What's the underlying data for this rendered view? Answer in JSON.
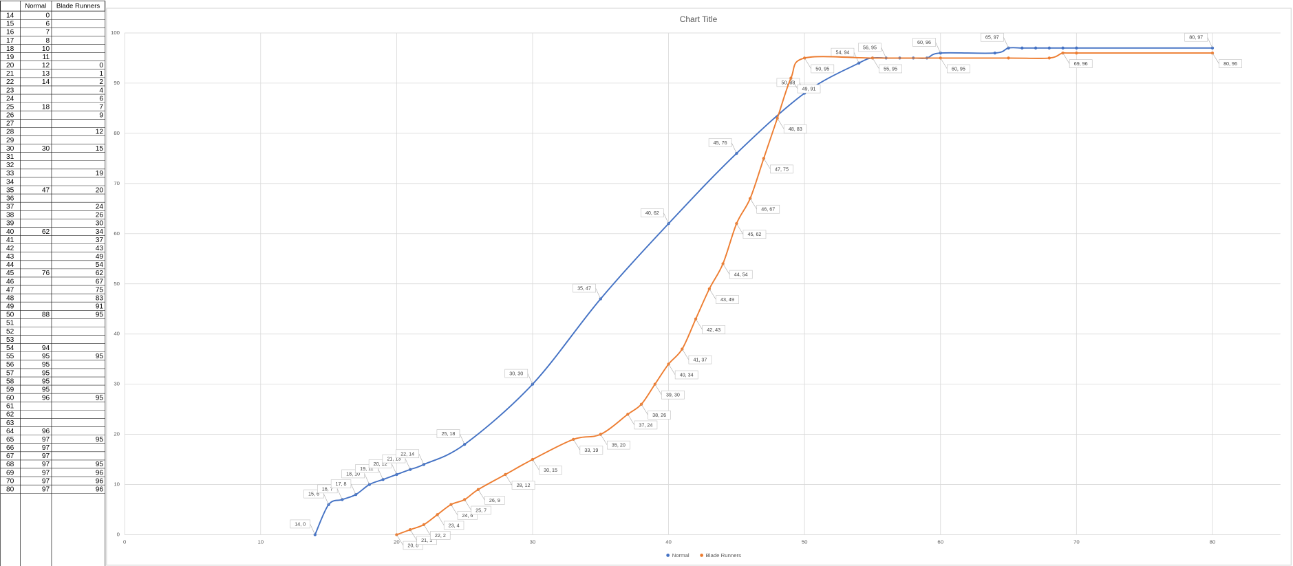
{
  "table": {
    "header": [
      "Normal",
      "Blade Runners"
    ],
    "rows": [
      [
        14,
        0,
        null
      ],
      [
        15,
        6,
        null
      ],
      [
        16,
        7,
        null
      ],
      [
        17,
        8,
        null
      ],
      [
        18,
        10,
        null
      ],
      [
        19,
        11,
        null
      ],
      [
        20,
        12,
        0
      ],
      [
        21,
        13,
        1
      ],
      [
        22,
        14,
        2
      ],
      [
        23,
        null,
        4
      ],
      [
        24,
        null,
        6
      ],
      [
        25,
        18,
        7
      ],
      [
        26,
        null,
        9
      ],
      [
        27,
        null,
        null
      ],
      [
        28,
        null,
        12
      ],
      [
        29,
        null,
        null
      ],
      [
        30,
        30,
        15
      ],
      [
        31,
        null,
        null
      ],
      [
        32,
        null,
        null
      ],
      [
        33,
        null,
        19
      ],
      [
        34,
        null,
        null
      ],
      [
        35,
        47,
        20
      ],
      [
        36,
        null,
        null
      ],
      [
        37,
        null,
        24
      ],
      [
        38,
        null,
        26
      ],
      [
        39,
        null,
        30
      ],
      [
        40,
        62,
        34
      ],
      [
        41,
        null,
        37
      ],
      [
        42,
        null,
        43
      ],
      [
        43,
        null,
        49
      ],
      [
        44,
        null,
        54
      ],
      [
        45,
        76,
        62
      ],
      [
        46,
        null,
        67
      ],
      [
        47,
        null,
        75
      ],
      [
        48,
        null,
        83
      ],
      [
        49,
        null,
        91
      ],
      [
        50,
        88,
        95
      ],
      [
        51,
        null,
        null
      ],
      [
        52,
        null,
        null
      ],
      [
        53,
        null,
        null
      ],
      [
        54,
        94,
        null
      ],
      [
        55,
        95,
        95
      ],
      [
        56,
        95,
        null
      ],
      [
        57,
        95,
        null
      ],
      [
        58,
        95,
        null
      ],
      [
        59,
        95,
        null
      ],
      [
        60,
        96,
        95
      ],
      [
        61,
        null,
        null
      ],
      [
        62,
        null,
        null
      ],
      [
        63,
        null,
        null
      ],
      [
        64,
        96,
        null
      ],
      [
        65,
        97,
        95
      ],
      [
        66,
        97,
        null
      ],
      [
        67,
        97,
        null
      ],
      [
        68,
        97,
        95
      ],
      [
        69,
        97,
        96
      ],
      [
        70,
        97,
        96
      ],
      [
        80,
        97,
        96
      ]
    ]
  },
  "chart_data": {
    "type": "scatter",
    "smooth": true,
    "title": "Chart Title",
    "xlim": [
      0,
      85
    ],
    "xticks": [
      0,
      10,
      20,
      30,
      40,
      50,
      60,
      70,
      80
    ],
    "ylim": [
      0,
      100
    ],
    "yticks": [
      0,
      10,
      20,
      30,
      40,
      50,
      60,
      70,
      80,
      90,
      100
    ],
    "grid": true,
    "legend": "bottom",
    "series": [
      {
        "name": "Normal",
        "color": "#4472c4",
        "x": [
          14,
          15,
          16,
          17,
          18,
          19,
          20,
          21,
          22,
          25,
          30,
          35,
          40,
          45,
          50,
          54,
          55,
          56,
          57,
          58,
          59,
          60,
          64,
          65,
          66,
          67,
          68,
          69,
          70,
          80
        ],
        "values": [
          0,
          6,
          7,
          8,
          10,
          11,
          12,
          13,
          14,
          18,
          30,
          47,
          62,
          76,
          88,
          94,
          95,
          95,
          95,
          95,
          95,
          96,
          96,
          97,
          97,
          97,
          97,
          97,
          97,
          97
        ],
        "value_labels": [
          "14, 0",
          "15, 6",
          "16, 7",
          "17, 8",
          "18, 10",
          "19, 11",
          "20, 12",
          "21, 13",
          "22, 14",
          "25, 18",
          "30, 30",
          "35, 47",
          "40, 62",
          "45, 76",
          "50, 88",
          "54, 94",
          null,
          "56, 95",
          null,
          null,
          null,
          "60, 96",
          null,
          "65, 97",
          null,
          null,
          null,
          null,
          null,
          "80, 97"
        ]
      },
      {
        "name": "Blade Runners",
        "color": "#ed7d31",
        "x": [
          20,
          21,
          22,
          23,
          24,
          25,
          26,
          28,
          30,
          33,
          35,
          37,
          38,
          39,
          40,
          41,
          42,
          43,
          44,
          45,
          46,
          47,
          48,
          49,
          50,
          55,
          60,
          65,
          68,
          69,
          70,
          80
        ],
        "values": [
          0,
          1,
          2,
          4,
          6,
          7,
          9,
          12,
          15,
          19,
          20,
          24,
          26,
          30,
          34,
          37,
          43,
          49,
          54,
          62,
          67,
          75,
          83,
          91,
          95,
          95,
          95,
          95,
          95,
          96,
          96,
          96
        ],
        "value_labels": [
          "20, 0",
          "21, 1",
          "22, 2",
          "23, 4",
          "24, 6",
          "25, 7",
          "26, 9",
          "28, 12",
          "30, 15",
          "33, 19",
          "35, 20",
          "37, 24",
          "38, 26",
          "39, 30",
          "40, 34",
          "41, 37",
          "42, 43",
          "43, 49",
          "44, 54",
          "45, 62",
          "46, 67",
          "47, 75",
          "48, 83",
          "49, 91",
          "50, 95",
          "55, 95",
          "60, 95",
          null,
          null,
          "69, 96",
          null,
          "80, 96"
        ]
      }
    ]
  }
}
